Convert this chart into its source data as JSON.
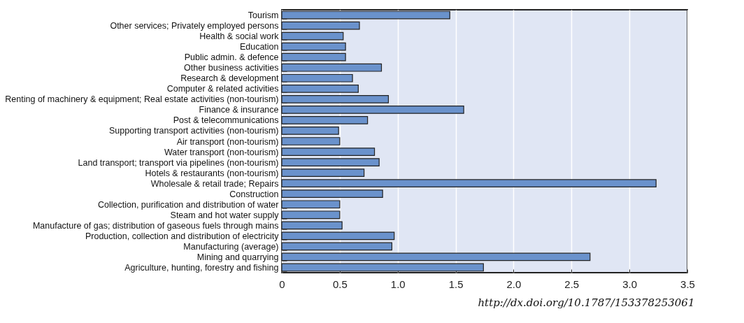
{
  "chart_data": {
    "type": "bar",
    "orientation": "horizontal",
    "categories": [
      "Tourism",
      "Other services; Privately employed persons",
      "Health & social work",
      "Education",
      "Public admin. & defence",
      "Other business activities",
      "Research & development",
      "Computer & related activities",
      "Renting of machinery & equipment; Real estate activities (non-tourism)",
      "Finance & insurance",
      "Post & telecommunications",
      "Supporting transport activities (non-tourism)",
      "Air transport (non-tourism)",
      "Water transport (non-tourism)",
      "Land transport; transport via pipelines (non-tourism)",
      "Hotels & restaurants (non-tourism)",
      "Wholesale & retail trade; Repairs",
      "Construction",
      "Collection, purification and distribution of water",
      "Steam and hot water supply",
      "Manufacture of gas; distribution of gaseous fuels through mains",
      "Production, collection and distribution of electricity",
      "Manufacturing (average)",
      "Mining and quarrying",
      "Agriculture, hunting, forestry and fishing"
    ],
    "values": [
      1.45,
      0.67,
      0.53,
      0.55,
      0.55,
      0.86,
      0.61,
      0.66,
      0.92,
      1.57,
      0.74,
      0.49,
      0.5,
      0.8,
      0.84,
      0.71,
      3.23,
      0.87,
      0.5,
      0.5,
      0.52,
      0.97,
      0.95,
      2.66,
      1.74
    ],
    "color": "#6a92cc",
    "xlim": [
      0,
      3.5
    ],
    "xticks": [
      0,
      {
        "value": 0.5,
        "label": "0.5"
      },
      {
        "value": 1,
        "label": "1.0"
      },
      {
        "value": 1.5,
        "label": "1.5"
      },
      {
        "value": 2,
        "label": "2.0"
      },
      {
        "value": 2.5,
        "label": "2.5"
      },
      {
        "value": 3,
        "label": "3.0"
      },
      {
        "value": 3.5,
        "label": "3.5"
      }
    ],
    "grid": "x",
    "annotations": [
      "http://dx.doi.org/10.1787/153378253061"
    ]
  }
}
